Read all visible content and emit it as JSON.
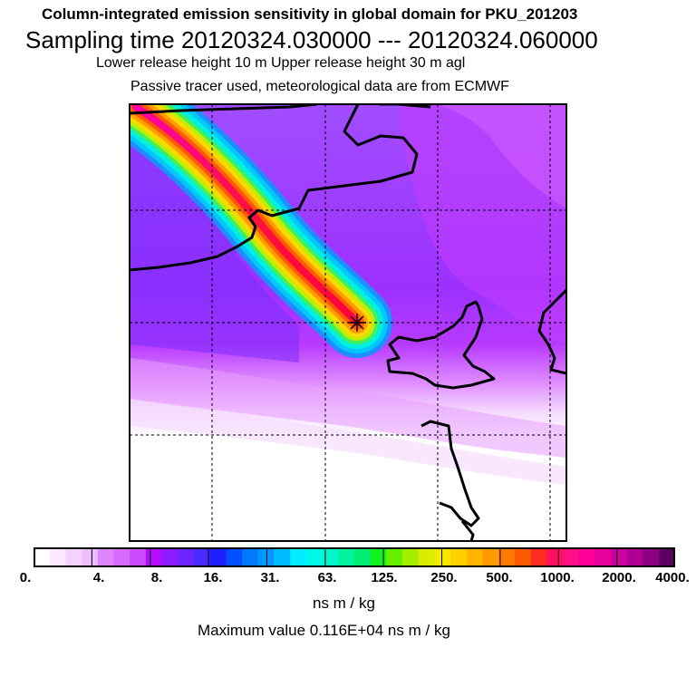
{
  "header": {
    "title": "Column-integrated emission sensitivity in global domain for PKU_201203",
    "sampling": "Sampling time   20120324.030000 --- 20120324.060000",
    "release": "Lower release height   10 m          Upper release height   30 m    agl",
    "tracer": "Passive tracer used, meteorological data are from ECMWF"
  },
  "colorbar": {
    "labels": [
      "0.",
      "4.",
      "8.",
      "16.",
      "31.",
      "63.",
      "125.",
      "250.",
      "500.",
      "1000.",
      "2000.",
      "4000."
    ],
    "colors": [
      "#ffffff",
      "#fbe8ff",
      "#f4d4ff",
      "#eebdff",
      "#df86ff",
      "#d56cff",
      "#cb4cff",
      "#b60cfe",
      "#8c1bfe",
      "#6a25fe",
      "#492afe",
      "#1f1ffe",
      "#0050ff",
      "#0078ff",
      "#0098ff",
      "#00baff",
      "#00eeff",
      "#00f8ea",
      "#00f7c8",
      "#00f4a0",
      "#00ee73",
      "#12f020",
      "#66f000",
      "#a6ee00",
      "#d8ee00",
      "#f8e800",
      "#ffd000",
      "#ffb400",
      "#ff9a00",
      "#ff7a00",
      "#ff5a00",
      "#ff2a20",
      "#ff1060",
      "#ff0e84",
      "#ff0099",
      "#e8009e",
      "#cc009e",
      "#b00094",
      "#8a0080",
      "#5a0060"
    ],
    "units": "ns m / kg"
  },
  "footer": {
    "max_value": "Maximum value  0.116E+04 ns m / kg"
  }
}
